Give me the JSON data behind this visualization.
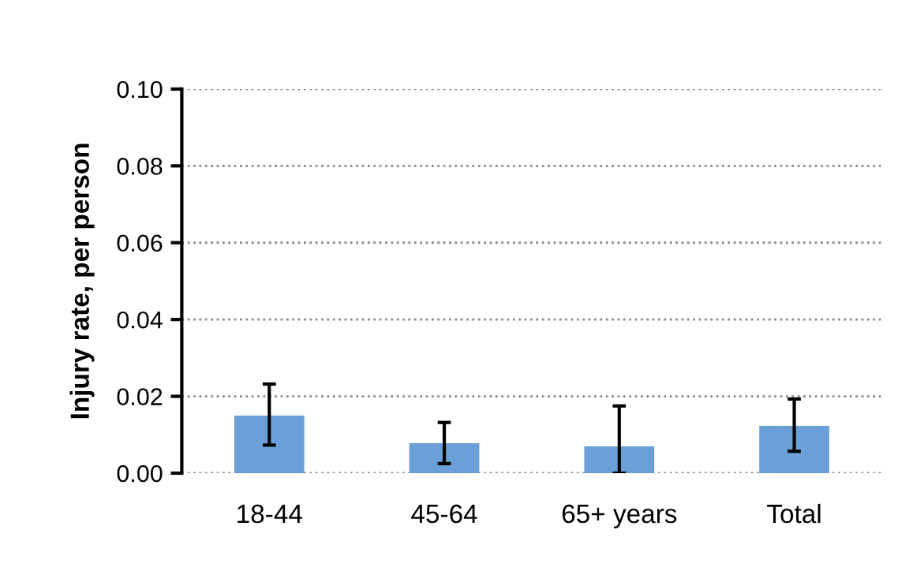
{
  "chart_data": {
    "type": "bar",
    "ylabel": "Injury rate, per person",
    "categories": [
      "18-44",
      "45-64",
      "65+ years",
      "Total"
    ],
    "values": [
      0.015,
      0.0078,
      0.007,
      0.0123
    ],
    "errors": [
      [
        0.0073,
        0.0232
      ],
      [
        0.0025,
        0.0132
      ],
      [
        0.0,
        0.0175
      ],
      [
        0.0057,
        0.0193
      ]
    ],
    "color": "#6a9fd8",
    "ylim": [
      0,
      0.1
    ],
    "yticks": [
      {
        "value": 0,
        "label": "0.00"
      },
      {
        "value": 0.02,
        "label": "0.02"
      },
      {
        "value": 0.04,
        "label": "0.04"
      },
      {
        "value": 0.06,
        "label": "0.06"
      },
      {
        "value": 0.08,
        "label": "0.08"
      },
      {
        "value": 0.1,
        "label": "0.10"
      }
    ],
    "grid": "y"
  }
}
